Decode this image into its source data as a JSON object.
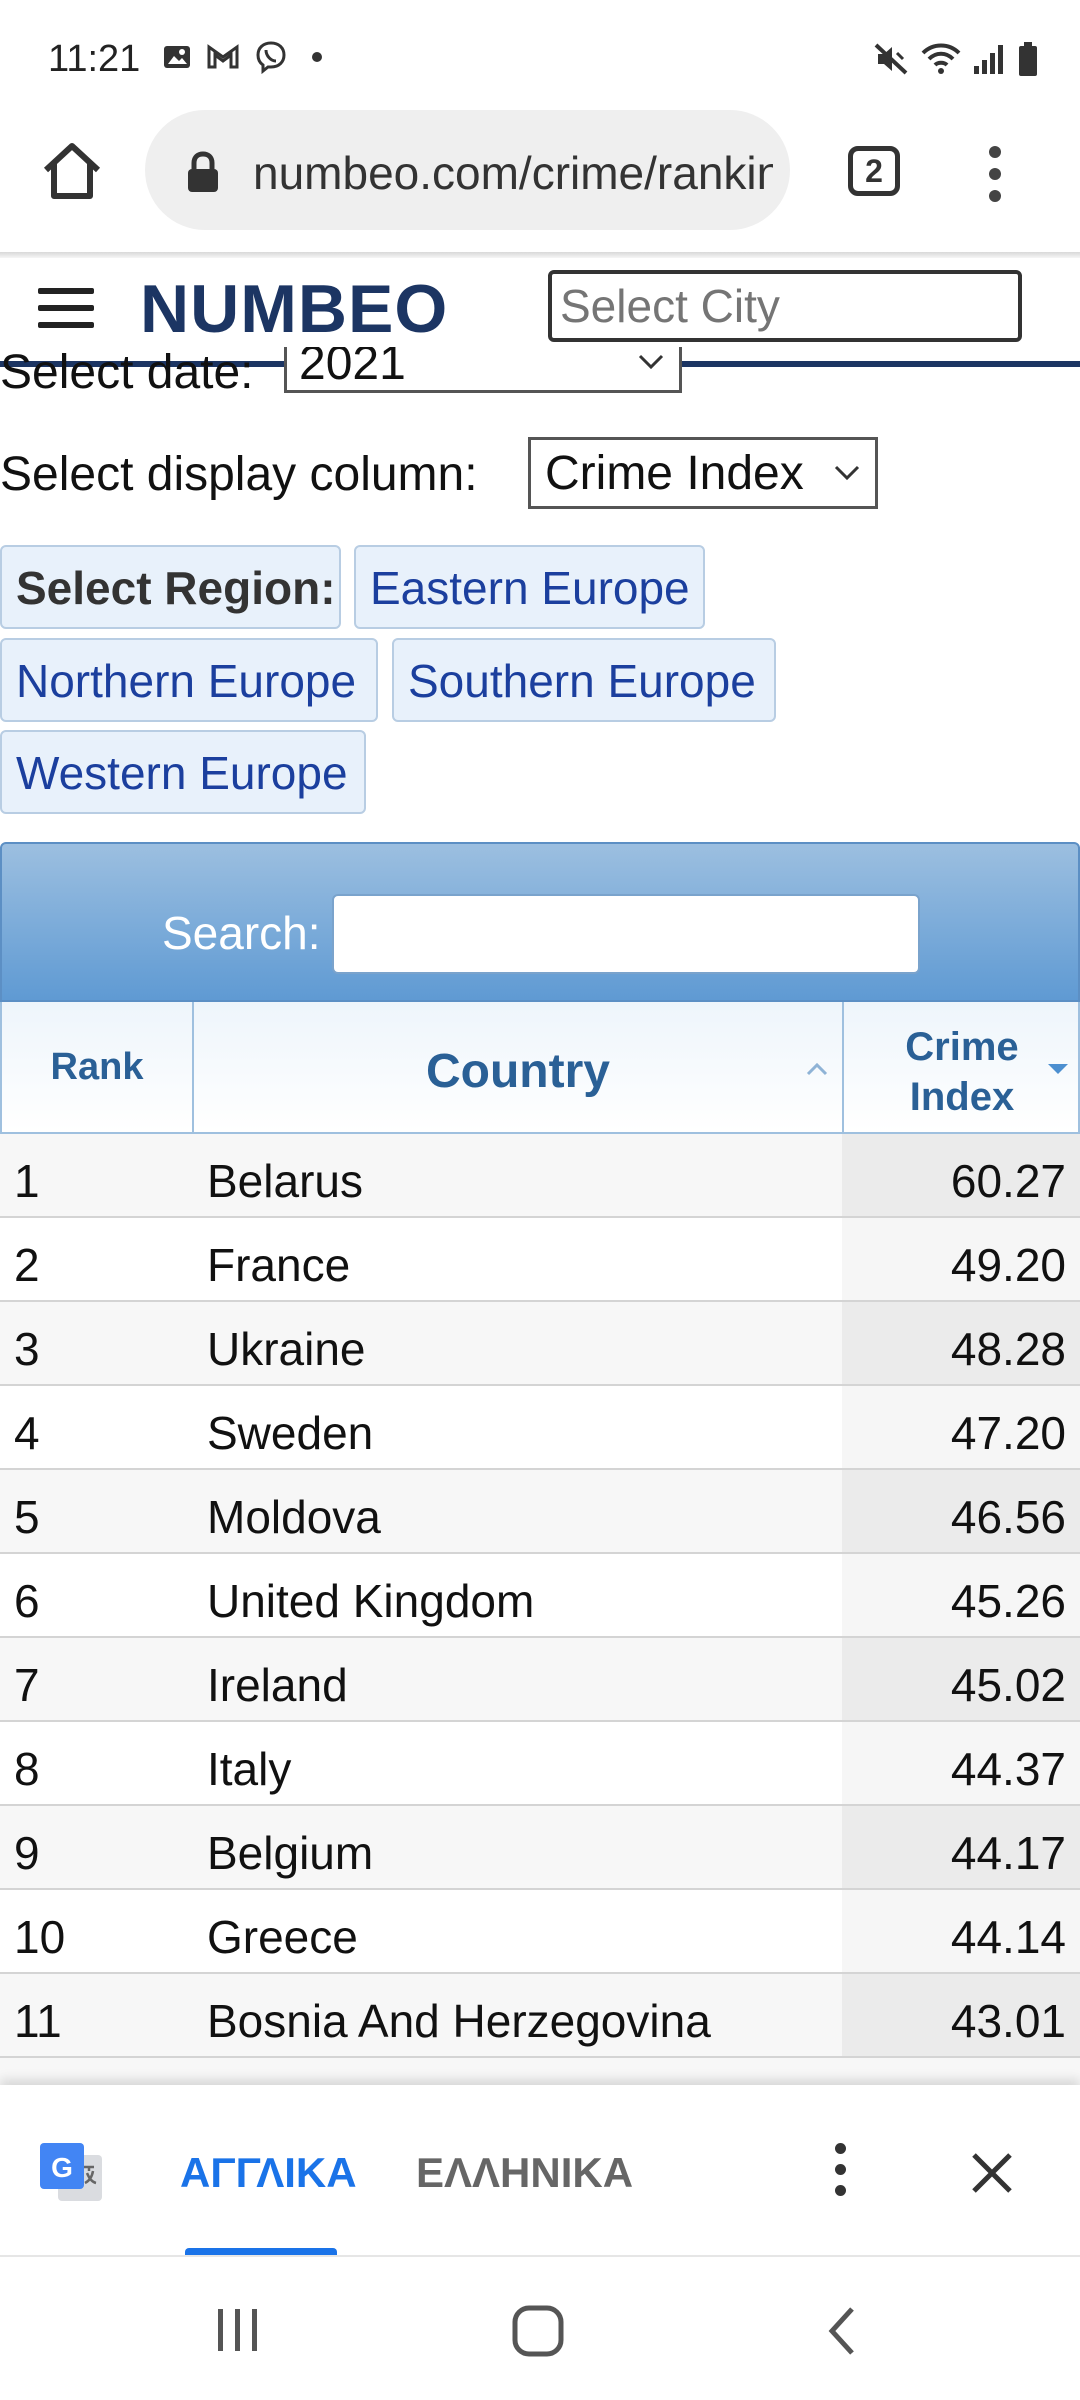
{
  "status_bar": {
    "time": "11:21",
    "left_icons": [
      "gallery-icon",
      "gmail-icon",
      "viber-icon",
      "dot-icon"
    ],
    "right_icons": [
      "mute-icon",
      "wifi-icon",
      "signal-icon",
      "battery-icon"
    ]
  },
  "browser": {
    "url": "numbeo.com/crime/rankings_by_country",
    "tab_count": "2"
  },
  "site": {
    "logo": "NUMBEO",
    "city_placeholder": "Select City"
  },
  "filters": {
    "date_label": "Select date:",
    "date_value": "2021",
    "column_label": "Select display column:",
    "column_value": "Crime Index"
  },
  "regions": {
    "label": "Select Region:",
    "items": [
      "Eastern Europe",
      "Northern Europe",
      "Southern Europe",
      "Western Europe"
    ]
  },
  "table": {
    "search_label": "Search:",
    "headers": {
      "rank": "Rank",
      "country": "Country",
      "index": "Crime Index"
    },
    "rows": [
      {
        "rank": "1",
        "country": "Belarus",
        "value": "60.27"
      },
      {
        "rank": "2",
        "country": "France",
        "value": "49.20"
      },
      {
        "rank": "3",
        "country": "Ukraine",
        "value": "48.28"
      },
      {
        "rank": "4",
        "country": "Sweden",
        "value": "47.20"
      },
      {
        "rank": "5",
        "country": "Moldova",
        "value": "46.56"
      },
      {
        "rank": "6",
        "country": "United Kingdom",
        "value": "45.26"
      },
      {
        "rank": "7",
        "country": "Ireland",
        "value": "45.02"
      },
      {
        "rank": "8",
        "country": "Italy",
        "value": "44.37"
      },
      {
        "rank": "9",
        "country": "Belgium",
        "value": "44.17"
      },
      {
        "rank": "10",
        "country": "Greece",
        "value": "44.14"
      },
      {
        "rank": "11",
        "country": "Bosnia And Herzegovina",
        "value": "43.01"
      }
    ]
  },
  "translate": {
    "source_lang": "ΑΓΓΛΙΚΑ",
    "target_lang": "ΕΛΛΗΝΙΚΑ"
  },
  "colors": {
    "brand": "#1c3563",
    "link": "#1b3f9e",
    "table_header_text": "#2a6096",
    "translate_accent": "#1a73e8"
  }
}
